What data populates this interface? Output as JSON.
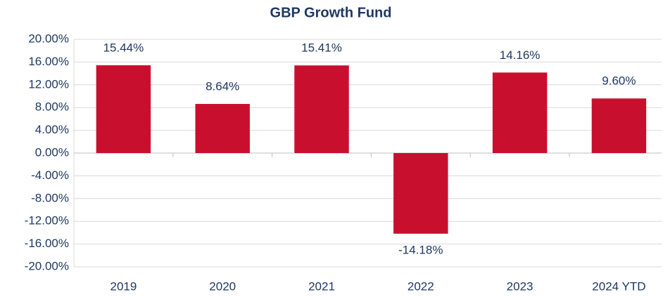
{
  "chart_data": {
    "type": "bar",
    "title": "GBP Growth Fund",
    "categories": [
      "2019",
      "2020",
      "2021",
      "2022",
      "2023",
      "2024 YTD"
    ],
    "values": [
      15.44,
      8.64,
      15.41,
      -14.18,
      14.16,
      9.6
    ],
    "value_labels": [
      "15.44%",
      "8.64%",
      "15.41%",
      "-14.18%",
      "14.16%",
      "9.60%"
    ],
    "color": "#c8102e",
    "ylim": [
      -20,
      20
    ],
    "yticks": [
      {
        "value": -20,
        "label": "-20.00%"
      },
      {
        "value": -16,
        "label": "-16.00%"
      },
      {
        "value": -12,
        "label": "-12.00%"
      },
      {
        "value": -8,
        "label": "-8.00%"
      },
      {
        "value": -4,
        "label": "-4.00%"
      },
      {
        "value": 0,
        "label": "0.00%"
      },
      {
        "value": 4,
        "label": "4.00%"
      },
      {
        "value": 8,
        "label": "8.00%"
      },
      {
        "value": 12,
        "label": "12.00%"
      },
      {
        "value": 16,
        "label": "16.00%"
      },
      {
        "value": 20,
        "label": "20.00%"
      }
    ],
    "grid": true
  }
}
